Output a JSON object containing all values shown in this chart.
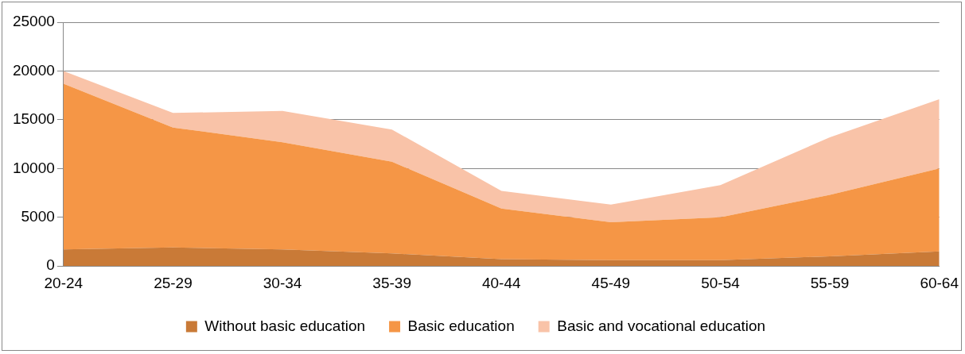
{
  "chart_data": {
    "type": "area",
    "stacked": true,
    "categories": [
      "20-24",
      "25-29",
      "30-34",
      "35-39",
      "40-44",
      "45-49",
      "50-54",
      "55-59",
      "60-64"
    ],
    "series": [
      {
        "name": "Without basic education",
        "color": "#c97a37",
        "values": [
          1700,
          1900,
          1700,
          1300,
          700,
          600,
          600,
          1000,
          1500
        ]
      },
      {
        "name": "Basic education",
        "color": "#f59646",
        "values": [
          17000,
          12300,
          11000,
          9400,
          5200,
          3900,
          4400,
          6300,
          8500
        ]
      },
      {
        "name": "Basic and vocational education",
        "color": "#f9c3a8",
        "values": [
          1300,
          1500,
          3200,
          3300,
          1800,
          1800,
          3300,
          5900,
          7100
        ]
      }
    ],
    "ylim": [
      0,
      25000
    ],
    "yticks": [
      0,
      5000,
      10000,
      15000,
      20000,
      25000
    ],
    "grid": "y",
    "legend": "bottom"
  }
}
